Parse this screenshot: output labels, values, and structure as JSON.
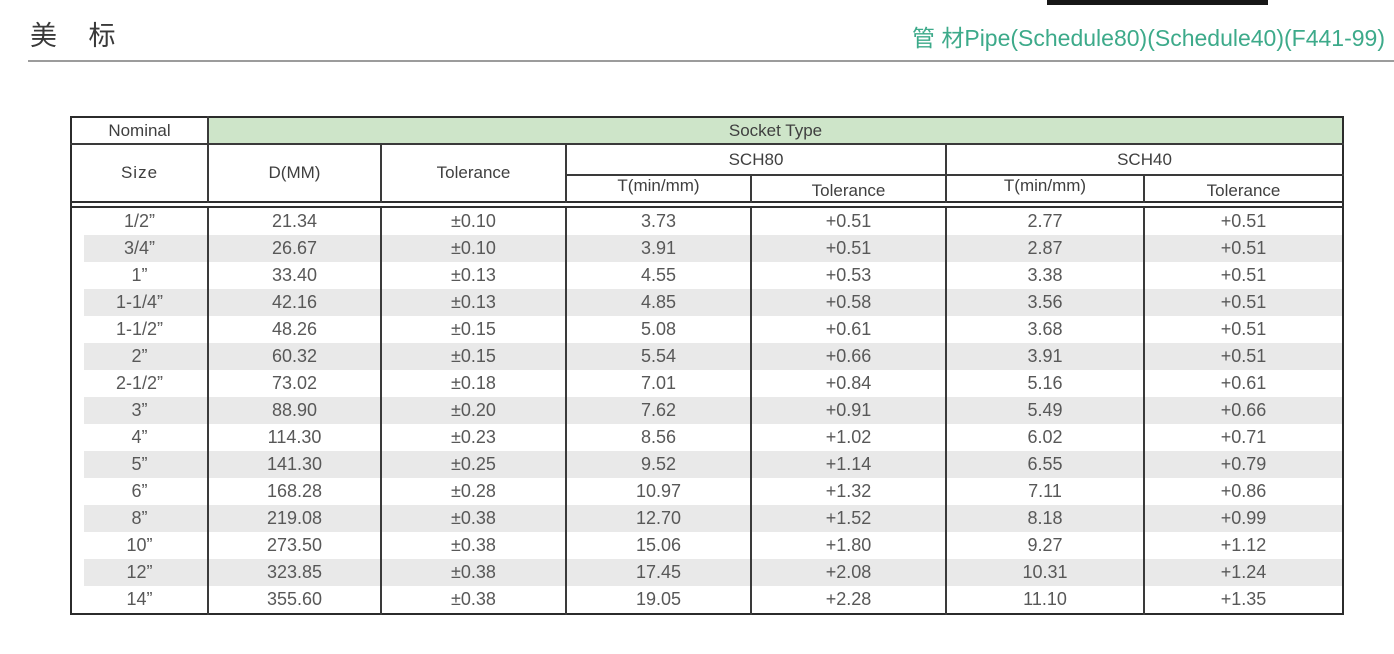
{
  "page": {
    "title": "美 标",
    "subtitle": "管 材Pipe(Schedule80)(Schedule40)(F441-99)",
    "colors": {
      "accent_green": "#3daa8a",
      "band_green": "#cee5c9",
      "stripe_gray": "#e9e9e9",
      "border_dark": "#2b2b2b"
    }
  },
  "table": {
    "header": {
      "nominal": "Nominal",
      "size": "Size",
      "d_mm": "D(MM)",
      "tolerance": "Tolerance",
      "socket_type": "Socket Type",
      "sch80": "SCH80",
      "sch40": "SCH40",
      "t_min_mm_80": "T(min/mm)",
      "tolerance_80": "Tolerance",
      "t_min_mm_40": "T(min/mm)",
      "tolerance_40": "Tolerance"
    },
    "rows": [
      [
        "1/2”",
        "21.34",
        "±0.10",
        "3.73",
        "+0.51",
        "2.77",
        "+0.51"
      ],
      [
        "3/4”",
        "26.67",
        "±0.10",
        "3.91",
        "+0.51",
        "2.87",
        "+0.51"
      ],
      [
        "1”",
        "33.40",
        "±0.13",
        "4.55",
        "+0.53",
        "3.38",
        "+0.51"
      ],
      [
        "1-1/4”",
        "42.16",
        "±0.13",
        "4.85",
        "+0.58",
        "3.56",
        "+0.51"
      ],
      [
        "1-1/2”",
        "48.26",
        "±0.15",
        "5.08",
        "+0.61",
        "3.68",
        "+0.51"
      ],
      [
        "2”",
        "60.32",
        "±0.15",
        "5.54",
        "+0.66",
        "3.91",
        "+0.51"
      ],
      [
        "2-1/2”",
        "73.02",
        "±0.18",
        "7.01",
        "+0.84",
        "5.16",
        "+0.61"
      ],
      [
        "3”",
        "88.90",
        "±0.20",
        "7.62",
        "+0.91",
        "5.49",
        "+0.66"
      ],
      [
        "4”",
        "114.30",
        "±0.23",
        "8.56",
        "+1.02",
        "6.02",
        "+0.71"
      ],
      [
        "5”",
        "141.30",
        "±0.25",
        "9.52",
        "+1.14",
        "6.55",
        "+0.79"
      ],
      [
        "6”",
        "168.28",
        "±0.28",
        "10.97",
        "+1.32",
        "7.11",
        "+0.86"
      ],
      [
        "8”",
        "219.08",
        "±0.38",
        "12.70",
        "+1.52",
        "8.18",
        "+0.99"
      ],
      [
        "10”",
        "273.50",
        "±0.38",
        "15.06",
        "+1.80",
        "9.27",
        "+1.12"
      ],
      [
        "12”",
        "323.85",
        "±0.38",
        "17.45",
        "+2.08",
        "10.31",
        "+1.24"
      ],
      [
        "14”",
        "355.60",
        "±0.38",
        "19.05",
        "+2.28",
        "11.10",
        "+1.35"
      ]
    ]
  }
}
